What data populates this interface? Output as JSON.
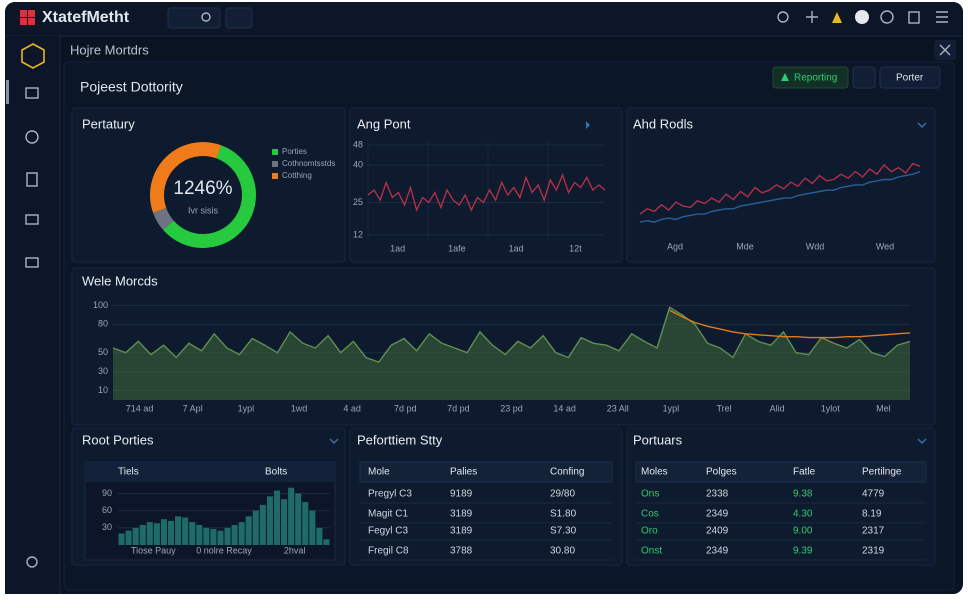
{
  "header": {
    "brand": "XtatefMetht"
  },
  "page": {
    "breadcrumb": "Hojre Mortdrs",
    "title": "Pojeest Dottority",
    "actions": [
      "Reporting",
      "Porter"
    ]
  },
  "widgets": {
    "donut": {
      "type": "pie",
      "title": "Pertatury",
      "center_value": "1246%",
      "center_label": "Ivr sisis",
      "categories": [
        "Porties",
        "Cothnomtsstds",
        "Cotthing"
      ],
      "values": [
        58,
        6,
        36
      ],
      "colors": [
        "#27c93f",
        "#6b7480",
        "#f07b1a"
      ]
    },
    "ang": {
      "type": "line",
      "title": "Ang Pont",
      "xlabels": [
        "1ad",
        "1afe",
        "1ad",
        "12t"
      ],
      "ylim": [
        10,
        50
      ],
      "yticks": [
        12,
        25,
        40,
        48
      ],
      "series": [
        {
          "color": "#b0304a",
          "values": [
            28,
            30,
            26,
            33,
            27,
            29,
            24,
            31,
            22,
            27,
            25,
            29,
            23,
            30,
            26,
            24,
            28,
            22,
            27,
            25,
            30,
            26,
            33,
            28,
            31,
            27,
            35,
            29,
            32,
            26,
            34,
            30,
            36,
            29,
            33,
            31,
            35,
            30,
            32,
            30
          ]
        }
      ]
    },
    "ahd": {
      "type": "line",
      "title": "Ahd Rodls",
      "xlabels": [
        "Agd",
        "Mde",
        "Wdd",
        "Wed"
      ],
      "ylim": [
        0,
        70
      ],
      "series": [
        {
          "color": "#b0304a",
          "values": [
            18,
            22,
            20,
            25,
            21,
            27,
            24,
            23,
            28,
            26,
            30,
            27,
            33,
            29,
            35,
            31,
            38,
            34,
            36,
            40,
            37,
            42,
            39,
            45,
            41,
            47,
            43,
            44,
            48,
            45,
            50,
            46,
            52,
            48,
            55,
            50,
            53,
            49,
            56,
            54
          ]
        },
        {
          "color": "#2a5f9a",
          "values": [
            12,
            13,
            12,
            14,
            15,
            14,
            16,
            17,
            18,
            18,
            20,
            21,
            22,
            22,
            24,
            25,
            26,
            27,
            28,
            29,
            30,
            30,
            32,
            33,
            34,
            35,
            36,
            36,
            38,
            39,
            40,
            40,
            42,
            43,
            44,
            44,
            46,
            47,
            48,
            50
          ]
        }
      ]
    },
    "wele": {
      "type": "area",
      "title": "Wele Morcds",
      "ylim": [
        0,
        110
      ],
      "yticks": [
        10,
        30,
        50,
        80,
        100
      ],
      "xlabels": [
        "714 ad",
        "7 Apl",
        "1ypl",
        "1wd",
        "4 ad",
        "7d pd",
        "7d pd",
        "23 pd",
        "14 ad",
        "23 All",
        "1ypl",
        "Trel",
        "Alid",
        "1ylot",
        "Mel"
      ],
      "series": [
        {
          "color": "#3f6b3a",
          "values": [
            55,
            50,
            62,
            48,
            58,
            45,
            60,
            52,
            70,
            55,
            48,
            65,
            58,
            50,
            72,
            60,
            55,
            68,
            50,
            62,
            45,
            40,
            58,
            65,
            52,
            70,
            60,
            55,
            50,
            72,
            58,
            48,
            62,
            55,
            68,
            50,
            45,
            66,
            60,
            58,
            52,
            70,
            62,
            55,
            98,
            90,
            80,
            60,
            55,
            45,
            70,
            62,
            58,
            72,
            50,
            48,
            66,
            60,
            55,
            64,
            50,
            46,
            58,
            62
          ]
        },
        {
          "color": "#e07a22",
          "values": [
            null,
            null,
            null,
            null,
            null,
            null,
            null,
            null,
            null,
            null,
            null,
            null,
            null,
            null,
            null,
            null,
            null,
            null,
            null,
            null,
            null,
            null,
            null,
            null,
            null,
            null,
            null,
            null,
            null,
            null,
            null,
            null,
            null,
            null,
            null,
            null,
            null,
            null,
            null,
            null,
            null,
            null,
            null,
            null,
            95,
            88,
            82,
            78,
            75,
            72,
            70,
            69,
            68,
            67,
            67,
            66,
            66,
            66,
            67,
            67,
            68,
            69,
            70,
            71
          ]
        }
      ]
    },
    "root": {
      "type": "bar",
      "title": "Root Porties",
      "headers": [
        "Tiels",
        "Bolts"
      ],
      "color": "#1f6b6a",
      "ylim": [
        0,
        110
      ],
      "yticks": [
        30,
        60,
        90
      ],
      "xlabels": [
        "Tiose Pauy",
        "0 nolre Recay",
        "2hval"
      ],
      "values": [
        20,
        25,
        30,
        35,
        40,
        38,
        45,
        42,
        50,
        48,
        40,
        35,
        30,
        28,
        25,
        30,
        35,
        40,
        50,
        60,
        70,
        85,
        95,
        80,
        100,
        90,
        75,
        60,
        30,
        10
      ]
    },
    "perf": {
      "type": "table",
      "title": "Peforttiem Stty",
      "columns": [
        "Mole",
        "Palies",
        "Confing"
      ],
      "rows": [
        [
          "Pregyl C3",
          "9189",
          "29/80"
        ],
        [
          "Magit C1",
          "3189",
          "S1.80"
        ],
        [
          "Fegyl C3",
          "3189",
          "S7.30"
        ],
        [
          "Fregil C8",
          "3788",
          "30.80"
        ]
      ]
    },
    "port": {
      "type": "table",
      "title": "Portuars",
      "columns": [
        "Moles",
        "Polges",
        "Fatle",
        "Pertilnge"
      ],
      "rows": [
        [
          "Ons",
          "2338",
          "9.38",
          "4779"
        ],
        [
          "Cos",
          "2349",
          "4.30",
          "8.19"
        ],
        [
          "Oro",
          "2409",
          "9.00",
          "2317"
        ],
        [
          "Onst",
          "2349",
          "9.39",
          "2319"
        ]
      ]
    }
  }
}
